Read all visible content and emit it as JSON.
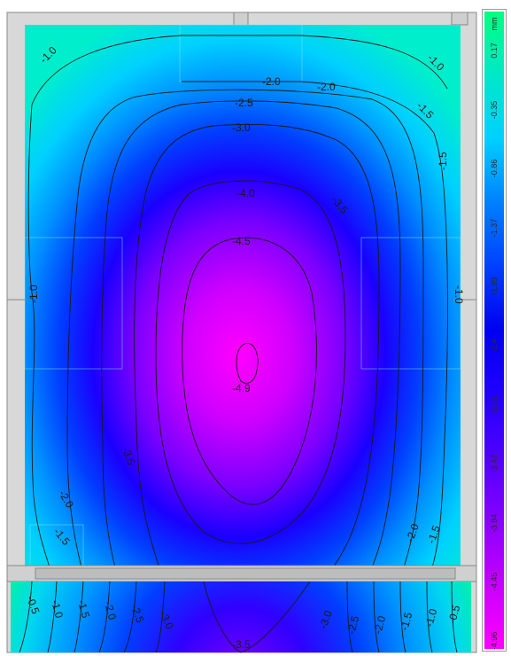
{
  "contour_labels": {
    "top_left_10": "-1.0",
    "top_center_20": "-2.0",
    "top_right_20": "-2.0",
    "top_right_10": "-1.0",
    "top_right_15": "-1.5",
    "right_15": "-1.5",
    "top_25": "-2.5",
    "top_30": "-3.0",
    "upper_40": "-4.0",
    "right_35": "-3.5",
    "upper_45": "-4.5",
    "left_10": "-1.0",
    "right_10": "-1.0",
    "center_49": "-4.9",
    "lower_left_35": "-3.5",
    "lower_left_20": "-2.0",
    "lower_left_15": "-1.5",
    "lower_right_20": "-2.0",
    "lower_right_15": "-1.5",
    "strip_05_left": "-0.5",
    "strip_10_left": "-1.0",
    "strip_15_left": "-1.5",
    "strip_20_left": "-2.0",
    "strip_25_left": "-2.5",
    "strip_30_left": "-3.0",
    "strip_35_bottom": "-3.5",
    "strip_30_right": "-3.0",
    "strip_25_right": "-2.5",
    "strip_20_right": "-2.0",
    "strip_15_right": "-1.5",
    "strip_10_right": "-1.0",
    "strip_05_right": "-0.5"
  },
  "legend": {
    "unit": "mm",
    "ticks": [
      "0.17",
      "-0.35",
      "-0.86",
      "-1.37",
      "-1.89",
      "-2.4",
      "-2.91",
      "-3.42",
      "-3.94",
      "-4.45",
      "-4.96"
    ],
    "colors": [
      "#00ff80",
      "#00e8c8",
      "#00d0ff",
      "#0080ff",
      "#0040ff",
      "#0000f0",
      "#2000ff",
      "#5000ff",
      "#8800ff",
      "#c800ff",
      "#ff00ff"
    ]
  }
}
